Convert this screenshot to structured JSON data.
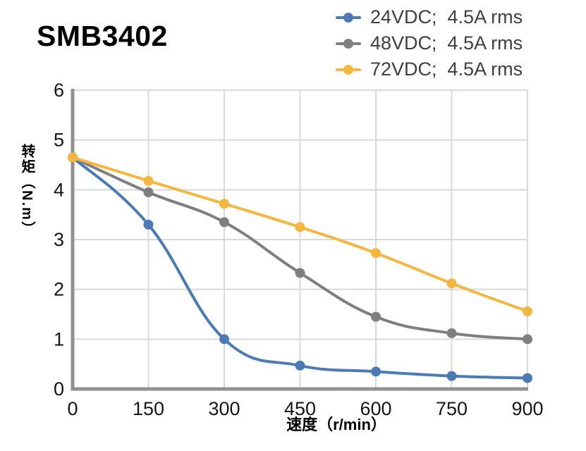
{
  "title": "SMB3402",
  "chart_data": {
    "type": "line",
    "x": [
      0,
      150,
      300,
      450,
      600,
      750,
      900
    ],
    "series": [
      {
        "name": "24VDC;  4.5A rms",
        "color": "#4a7bb7",
        "values": [
          4.65,
          3.3,
          1.0,
          0.47,
          0.35,
          0.26,
          0.22
        ]
      },
      {
        "name": "48VDC;  4.5A rms",
        "color": "#7f7f7f",
        "values": [
          4.65,
          3.95,
          3.35,
          2.33,
          1.45,
          1.12,
          1.0
        ]
      },
      {
        "name": "72VDC;  4.5A rms",
        "color": "#f3b63f",
        "values": [
          4.65,
          4.18,
          3.72,
          3.25,
          2.73,
          2.12,
          1.56
        ]
      }
    ],
    "xlabel": "速度（r/min）",
    "ylabel": "转矩（N.m）",
    "x_ticks": [
      0,
      150,
      300,
      450,
      600,
      750,
      900
    ],
    "y_ticks": [
      0,
      1,
      2,
      3,
      4,
      5,
      6
    ],
    "xlim": [
      0,
      900
    ],
    "ylim": [
      0,
      6
    ],
    "grid": true,
    "smooth": true,
    "legend_position": "top-right"
  },
  "colors": {
    "grid": "#d9d9d9",
    "axis": "#919191",
    "tick_text": "#161616"
  }
}
